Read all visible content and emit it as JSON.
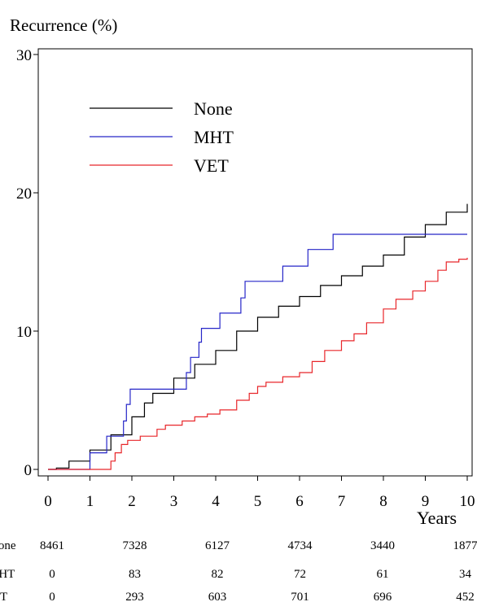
{
  "chart_data": {
    "type": "step",
    "y_label": "Recurrence (%)",
    "x_label": "Years",
    "xlim": [
      0,
      10
    ],
    "xticks": [
      0,
      1,
      2,
      3,
      4,
      5,
      6,
      7,
      8,
      9,
      10
    ],
    "ylim": [
      0,
      30
    ],
    "yticks": [
      0,
      10,
      20,
      30
    ],
    "legend": "upper-left",
    "series": [
      {
        "name": "None",
        "color": "#000000",
        "x": [
          0,
          0.2,
          0.5,
          1,
          1.5,
          2,
          2.3,
          2.5,
          3,
          3.5,
          4,
          4.5,
          5,
          5.5,
          6,
          6.5,
          7,
          7.5,
          8,
          8.5,
          9,
          9.5,
          10
        ],
        "values": [
          0,
          0.1,
          0.6,
          1.4,
          2.5,
          3.8,
          4.8,
          5.5,
          6.6,
          7.6,
          8.6,
          10,
          11,
          11.8,
          12.5,
          13.3,
          14,
          14.7,
          15.5,
          16.8,
          17.7,
          18.6,
          19.2
        ]
      },
      {
        "name": "MHT",
        "color": "#2626c8",
        "x": [
          0,
          1.0,
          1.4,
          1.8,
          1.87,
          1.96,
          3.3,
          3.4,
          3.6,
          3.66,
          4.1,
          4.6,
          4.7,
          5.6,
          6.2,
          6.8,
          10
        ],
        "values": [
          0,
          1.2,
          2.4,
          3.5,
          4.7,
          5.8,
          7.0,
          8.1,
          9.2,
          10.2,
          11.3,
          12.4,
          13.6,
          14.7,
          15.9,
          17.0,
          17.0
        ]
      },
      {
        "name": "VET",
        "color": "#e8262a",
        "x": [
          0,
          1.5,
          1.6,
          1.75,
          1.9,
          2.2,
          2.6,
          2.8,
          3.2,
          3.5,
          3.8,
          4.1,
          4.5,
          4.8,
          5.0,
          5.2,
          5.6,
          6.0,
          6.3,
          6.6,
          7.0,
          7.3,
          7.6,
          8.0,
          8.3,
          8.7,
          9.0,
          9.3,
          9.5,
          9.8,
          10
        ],
        "values": [
          0,
          0.6,
          1.2,
          1.8,
          2.1,
          2.4,
          2.9,
          3.2,
          3.5,
          3.8,
          4.0,
          4.3,
          5.0,
          5.5,
          6.0,
          6.3,
          6.7,
          7.0,
          7.8,
          8.6,
          9.3,
          9.8,
          10.6,
          11.6,
          12.3,
          12.9,
          13.6,
          14.4,
          15.0,
          15.2,
          15.3
        ]
      }
    ],
    "risk_table": [
      {
        "label": "None",
        "values": [
          8461,
          7328,
          6127,
          4734,
          3440,
          1877
        ]
      },
      {
        "label": "MHT",
        "values": [
          0,
          83,
          82,
          72,
          61,
          34
        ]
      },
      {
        "label": "VET",
        "values": [
          0,
          293,
          603,
          701,
          696,
          452
        ]
      }
    ]
  }
}
